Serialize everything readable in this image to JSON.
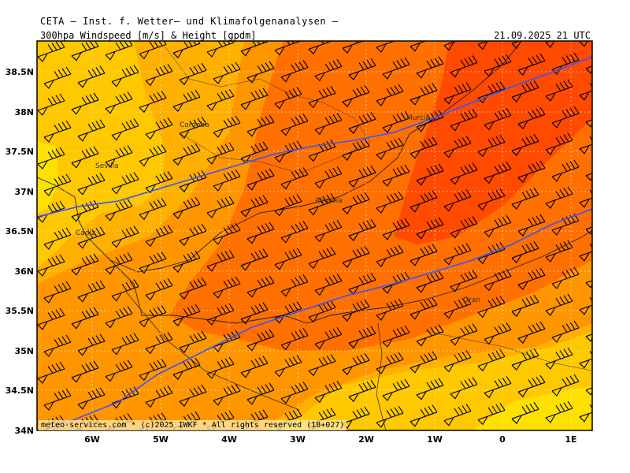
{
  "header": {
    "title": "CETA — Inst. f. Wetter— und Klimafolgenanalysen —",
    "product": "300hpa Windspeed [m/s] & Height [gpdm]",
    "valid_time": "21.09.2025 21 UTC"
  },
  "footer": {
    "credit": "meteo-services.com * (c)2025 IWKF * All rights reserved (18+027)"
  },
  "map": {
    "lat_labels": [
      "38.5N",
      "38N",
      "37.5N",
      "37N",
      "36.5N",
      "36N",
      "35.5N",
      "35N",
      "34.5N",
      "34N"
    ],
    "lon_labels": [
      "6W",
      "5W",
      "4W",
      "3W",
      "2W",
      "1W",
      "0",
      "1E"
    ],
    "cities": [
      "Cordoba",
      "Murcia",
      "Sevilla",
      "Almeria",
      "Cadiz",
      "Oran"
    ],
    "colors": {
      "band_yellow": "#ffd700",
      "band_light_orange": "#ffb000",
      "band_orange": "#ff9600",
      "band_dark_orange": "#ff7000",
      "band_red_orange": "#ff4a00",
      "height_contour": "#3355ff",
      "coastline": "#222222",
      "wind_barb": "#000000"
    }
  }
}
